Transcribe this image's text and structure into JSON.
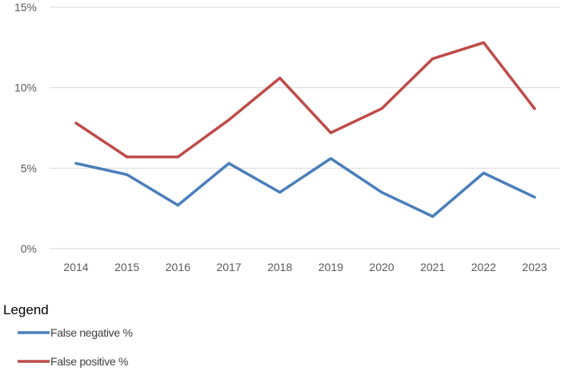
{
  "chart_data": {
    "type": "line",
    "categories": [
      "2014",
      "2015",
      "2016",
      "2017",
      "2018",
      "2019",
      "2020",
      "2021",
      "2022",
      "2023"
    ],
    "ylim": [
      0,
      15
    ],
    "yticks": [
      {
        "value": 0,
        "label": "0%"
      },
      {
        "value": 5,
        "label": "5%"
      },
      {
        "value": 10,
        "label": "10%"
      },
      {
        "value": 15,
        "label": "15%"
      }
    ],
    "grid": true,
    "legend": {
      "title": "Legend",
      "placement": "bottom-left"
    },
    "series": [
      {
        "name": "False negative %",
        "color": "#4a7ebb",
        "values": [
          5.3,
          4.6,
          2.7,
          5.3,
          3.5,
          5.6,
          3.5,
          2.0,
          4.7,
          3.2
        ]
      },
      {
        "name": "False positive %",
        "color": "#be4b48",
        "values": [
          7.8,
          5.7,
          5.7,
          8.0,
          10.6,
          7.2,
          8.7,
          11.8,
          12.8,
          8.7
        ]
      }
    ]
  }
}
